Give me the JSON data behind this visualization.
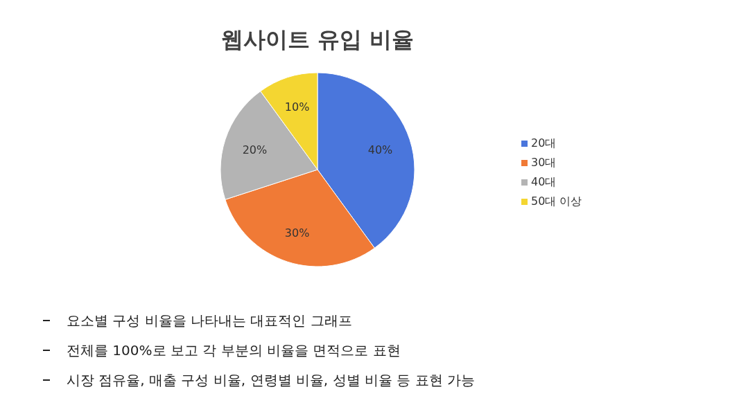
{
  "chart_data": {
    "type": "pie",
    "title": "웹사이트 유입 비율",
    "categories": [
      "20대",
      "30대",
      "40대",
      "50대 이상"
    ],
    "values": [
      40,
      30,
      20,
      10
    ],
    "value_labels": [
      "40%",
      "30%",
      "20%",
      "10%"
    ],
    "colors": [
      "#4a76dc",
      "#f07a36",
      "#b4b4b4",
      "#f4d631"
    ],
    "legend": "right",
    "annotations": [
      "요소별 구성 비율을 나타내는 대표적인 그래프",
      "전체를 100%로 보고 각 부분의 비율을 면적으로 표현",
      "시장 점유율, 매출 구성 비율, 연령별 비율, 성별 비율 등 표현 가능"
    ]
  }
}
